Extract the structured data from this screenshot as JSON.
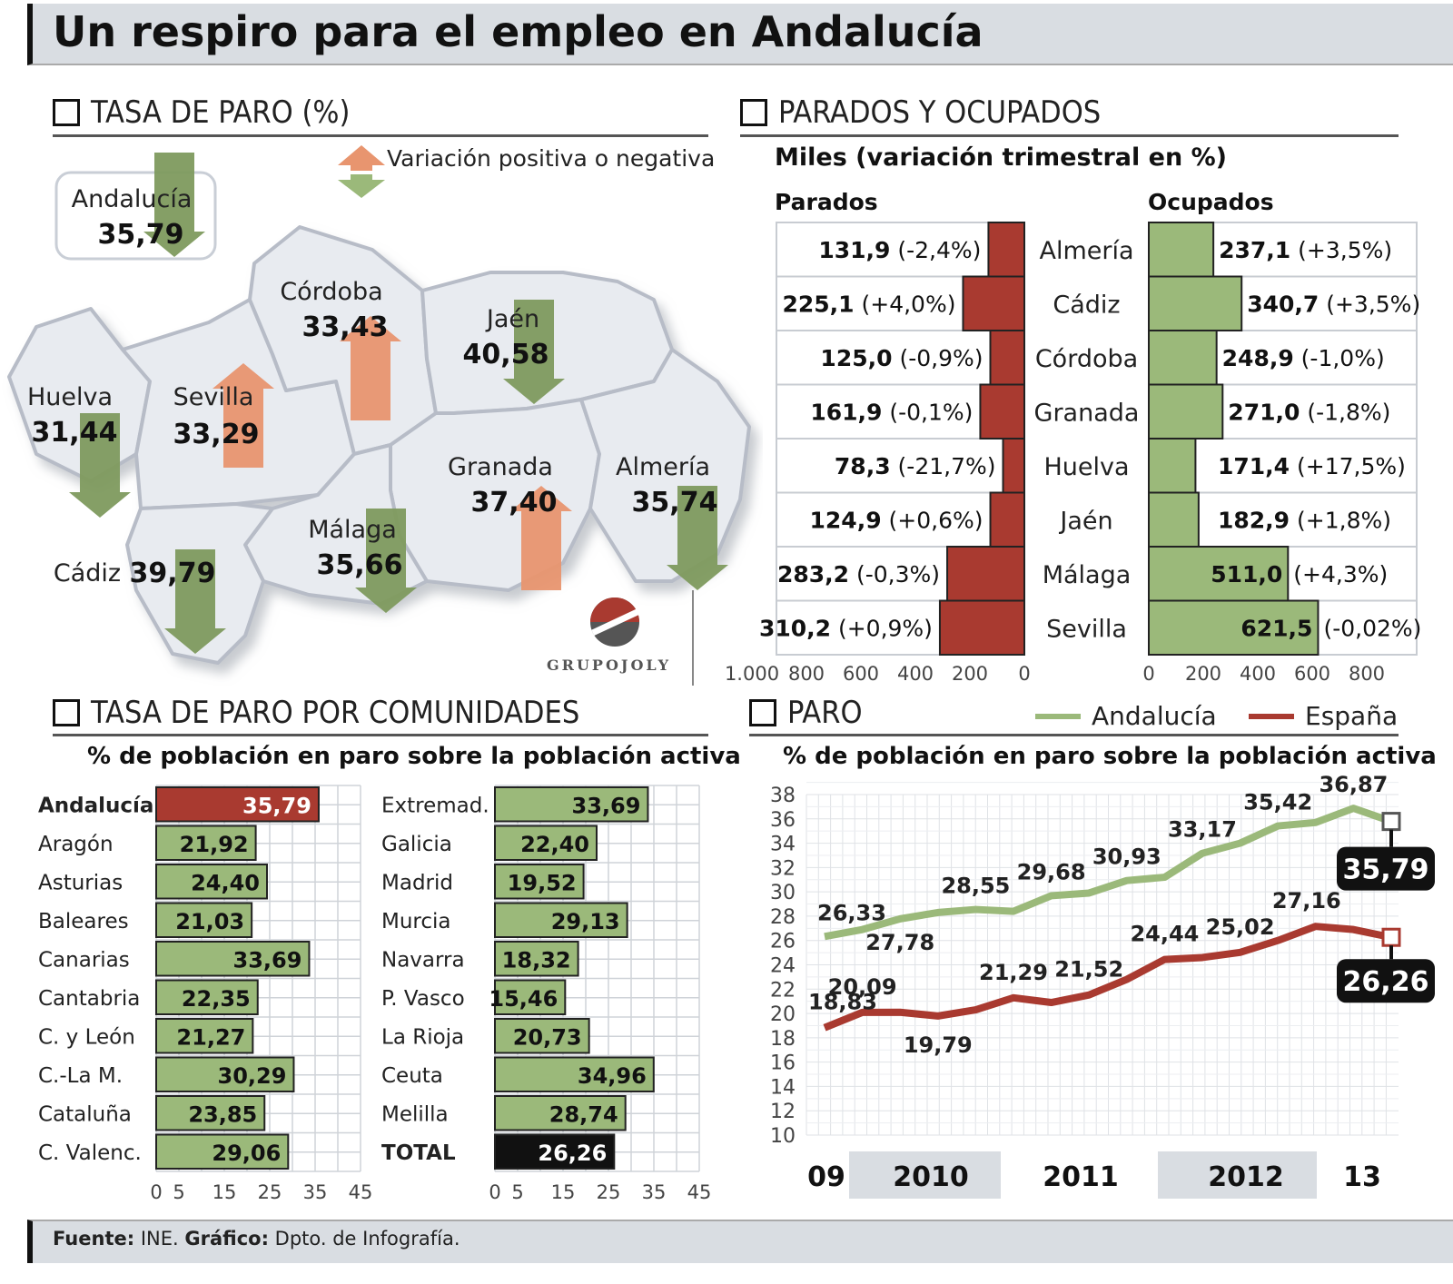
{
  "title": "Un respiro para el empleo en Andalucía",
  "source": {
    "fuente_label": "Fuente:",
    "fuente": "INE.",
    "grafico_label": "Gráfico:",
    "grafico": "Dpto. de Infografía."
  },
  "logo_text": "GRUPOJOLY",
  "colors": {
    "green": "#9bb97a",
    "green_dark": "#7e9a5e",
    "red": "#a93a30",
    "orange": "#e8956f",
    "black": "#111111",
    "gray_band": "#d9dde2"
  },
  "map_section": {
    "title": "TASA DE PARO (%)",
    "legend": "Variación positiva o negativa",
    "regions": [
      {
        "name": "Andalucía",
        "value": "35,79",
        "trend": "down"
      },
      {
        "name": "Córdoba",
        "value": "33,43",
        "trend": "up"
      },
      {
        "name": "Jaén",
        "value": "40,58",
        "trend": "down"
      },
      {
        "name": "Huelva",
        "value": "31,44",
        "trend": "down"
      },
      {
        "name": "Sevilla",
        "value": "33,29",
        "trend": "up"
      },
      {
        "name": "Granada",
        "value": "37,40",
        "trend": "up"
      },
      {
        "name": "Almería",
        "value": "35,74",
        "trend": "down"
      },
      {
        "name": "Málaga",
        "value": "35,66",
        "trend": "down"
      },
      {
        "name": "Cádiz",
        "value": "39,79",
        "trend": "down"
      }
    ]
  },
  "chart_data": [
    {
      "type": "bar",
      "title": "PARADOS Y OCUPADOS",
      "subtitle": "Miles (variación trimestral en %)",
      "categories": [
        "Almería",
        "Cádiz",
        "Córdoba",
        "Granada",
        "Huelva",
        "Jaén",
        "Málaga",
        "Sevilla"
      ],
      "series": [
        {
          "name": "Parados",
          "values": [
            131.9,
            225.1,
            125.0,
            161.9,
            78.3,
            124.9,
            283.2,
            310.2
          ],
          "labels": [
            "131,9",
            "225,1",
            "125,0",
            "161,9",
            "78,3",
            "124,9",
            "283,2",
            "310,2"
          ],
          "changes": [
            "(-2,4%)",
            "(+4,0%)",
            "(-0,9%)",
            "(-0,1%)",
            "(-21,7%)",
            "(+0,6%)",
            "(-0,3%)",
            "(+0,9%)"
          ],
          "axis_ticks": [
            "1.000",
            "800",
            "600",
            "400",
            "200",
            "0"
          ],
          "xlim": [
            0,
            1000
          ]
        },
        {
          "name": "Ocupados",
          "values": [
            237.1,
            340.7,
            248.9,
            271.0,
            171.4,
            182.9,
            511.0,
            621.5
          ],
          "labels": [
            "237,1",
            "340,7",
            "248,9",
            "271,0",
            "171,4",
            "182,9",
            "511,0",
            "621,5"
          ],
          "changes": [
            "(+3,5%)",
            "(+3,5%)",
            "(-1,0%)",
            "(-1,8%)",
            "(+17,5%)",
            "(+1,8%)",
            "(+4,3%)",
            "(-0,02%)"
          ],
          "axis_ticks": [
            "0",
            "200",
            "400",
            "600",
            "800"
          ],
          "xlim": [
            0,
            1000
          ]
        }
      ]
    },
    {
      "type": "bar",
      "title": "TASA DE PARO POR COMUNIDADES",
      "subtitle": "% de población en paro sobre la población activa",
      "xlim": [
        0,
        45
      ],
      "axis_ticks": [
        "0",
        "5",
        "15",
        "25",
        "35",
        "45"
      ],
      "groups": [
        {
          "categories": [
            "Andalucía",
            "Aragón",
            "Asturias",
            "Baleares",
            "Canarias",
            "Cantabria",
            "C. y León",
            "C.-La M.",
            "Cataluña",
            "C. Valenc."
          ],
          "values": [
            35.79,
            21.92,
            24.4,
            21.03,
            33.69,
            22.35,
            21.27,
            30.29,
            23.85,
            29.06
          ],
          "labels": [
            "35,79",
            "21,92",
            "24,40",
            "21,03",
            "33,69",
            "22,35",
            "21,27",
            "30,29",
            "23,85",
            "29,06"
          ],
          "highlight": "Andalucía"
        },
        {
          "categories": [
            "Extremad.",
            "Galicia",
            "Madrid",
            "Murcia",
            "Navarra",
            "P. Vasco",
            "La Rioja",
            "Ceuta",
            "Melilla",
            "TOTAL"
          ],
          "values": [
            33.69,
            22.4,
            19.52,
            29.13,
            18.32,
            15.46,
            20.73,
            34.96,
            28.74,
            26.26
          ],
          "labels": [
            "33,69",
            "22,40",
            "19,52",
            "29,13",
            "18,32",
            "15,46",
            "20,73",
            "34,96",
            "28,74",
            "26,26"
          ],
          "highlight": "TOTAL"
        }
      ]
    },
    {
      "type": "line",
      "title": "PARO",
      "subtitle": "% de población en paro sobre la población activa",
      "ylim": [
        10,
        38
      ],
      "y_ticks": [
        10,
        12,
        14,
        16,
        18,
        20,
        22,
        24,
        26,
        28,
        30,
        32,
        34,
        36,
        38
      ],
      "x_labels": [
        "09",
        "2010",
        "2011",
        "2012",
        "13"
      ],
      "series": [
        {
          "name": "Andalucía",
          "values": [
            26.33,
            26.9,
            27.78,
            28.3,
            28.55,
            28.4,
            29.68,
            29.9,
            30.93,
            31.2,
            33.17,
            34.0,
            35.42,
            35.7,
            36.87,
            35.79
          ],
          "labeled_points": [
            {
              "index": 0,
              "label": "26,33"
            },
            {
              "index": 2,
              "label": "27,78"
            },
            {
              "index": 4,
              "label": "28,55"
            },
            {
              "index": 6,
              "label": "29,68"
            },
            {
              "index": 8,
              "label": "30,93"
            },
            {
              "index": 10,
              "label": "33,17"
            },
            {
              "index": 12,
              "label": "35,42"
            },
            {
              "index": 14,
              "label": "36,87"
            }
          ],
          "final_label": "35,79"
        },
        {
          "name": "España",
          "values": [
            18.83,
            20.09,
            20.1,
            19.79,
            20.3,
            21.29,
            20.9,
            21.52,
            22.8,
            24.44,
            24.6,
            25.02,
            26.0,
            27.16,
            26.9,
            26.26
          ],
          "labeled_points": [
            {
              "index": 0,
              "label": "18,83"
            },
            {
              "index": 1,
              "label": "20,09"
            },
            {
              "index": 3,
              "label": "19,79"
            },
            {
              "index": 5,
              "label": "21,29"
            },
            {
              "index": 7,
              "label": "21,52"
            },
            {
              "index": 9,
              "label": "24,44"
            },
            {
              "index": 11,
              "label": "25,02"
            },
            {
              "index": 13,
              "label": "27,16"
            }
          ],
          "final_label": "26,26"
        }
      ]
    }
  ]
}
